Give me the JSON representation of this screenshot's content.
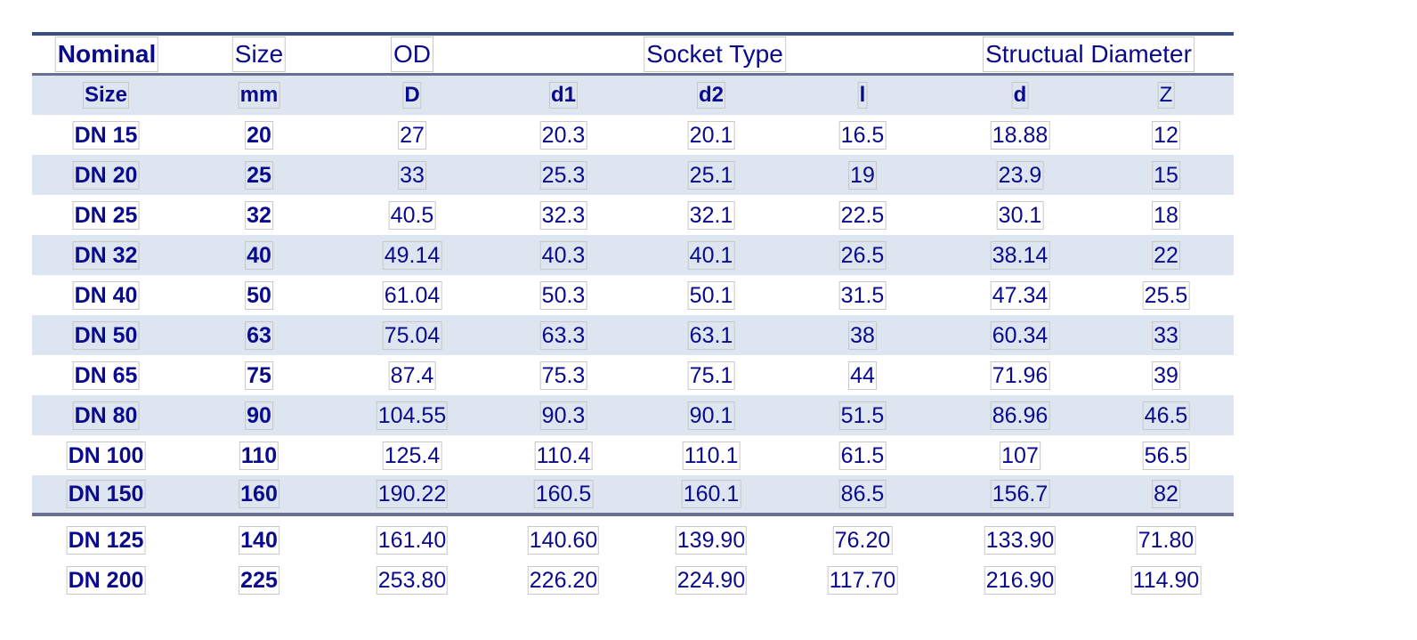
{
  "header_row_1": {
    "nominal": "Nominal",
    "size": "Size",
    "od": "OD",
    "socket_type": "Socket Type",
    "structural_diameter": "Structual Diameter"
  },
  "header_row_2": {
    "size": "Size",
    "mm": "mm",
    "D": "D",
    "d1": "d1",
    "d2": "d2",
    "l": "l",
    "d": "d",
    "Z": "Z"
  },
  "rows": [
    {
      "size": "DN 15",
      "mm": "20",
      "D": "27",
      "d1": "20.3",
      "d2": "20.1",
      "l": "16.5",
      "d": "18.88",
      "Z": "12"
    },
    {
      "size": "DN 20",
      "mm": "25",
      "D": "33",
      "d1": "25.3",
      "d2": "25.1",
      "l": "19",
      "d": "23.9",
      "Z": "15"
    },
    {
      "size": "DN 25",
      "mm": "32",
      "D": "40.5",
      "d1": "32.3",
      "d2": "32.1",
      "l": "22.5",
      "d": "30.1",
      "Z": "18"
    },
    {
      "size": "DN 32",
      "mm": "40",
      "D": "49.14",
      "d1": "40.3",
      "d2": "40.1",
      "l": "26.5",
      "d": "38.14",
      "Z": "22"
    },
    {
      "size": "DN 40",
      "mm": "50",
      "D": "61.04",
      "d1": "50.3",
      "d2": "50.1",
      "l": "31.5",
      "d": "47.34",
      "Z": "25.5"
    },
    {
      "size": "DN 50",
      "mm": "63",
      "D": "75.04",
      "d1": "63.3",
      "d2": "63.1",
      "l": "38",
      "d": "60.34",
      "Z": "33"
    },
    {
      "size": "DN 65",
      "mm": "75",
      "D": "87.4",
      "d1": "75.3",
      "d2": "75.1",
      "l": "44",
      "d": "71.96",
      "Z": "39"
    },
    {
      "size": "DN 80",
      "mm": "90",
      "D": "104.55",
      "d1": "90.3",
      "d2": "90.1",
      "l": "51.5",
      "d": "86.96",
      "Z": "46.5"
    },
    {
      "size": "DN 100",
      "mm": "110",
      "D": "125.4",
      "d1": "110.4",
      "d2": "110.1",
      "l": "61.5",
      "d": "107",
      "Z": "56.5"
    },
    {
      "size": "DN 150",
      "mm": "160",
      "D": "190.22",
      "d1": "160.5",
      "d2": "160.1",
      "l": "86.5",
      "d": "156.7",
      "Z": "82"
    }
  ],
  "extra_rows": [
    {
      "size": "DN 125",
      "mm": "140",
      "D": "161.40",
      "d1": "140.60",
      "d2": "139.90",
      "l": "76.20",
      "d": "133.90",
      "Z": "71.80"
    },
    {
      "size": "DN 200",
      "mm": "225",
      "D": "253.80",
      "d1": "226.20",
      "d2": "224.90",
      "l": "117.70",
      "d": "216.90",
      "Z": "114.90"
    }
  ]
}
